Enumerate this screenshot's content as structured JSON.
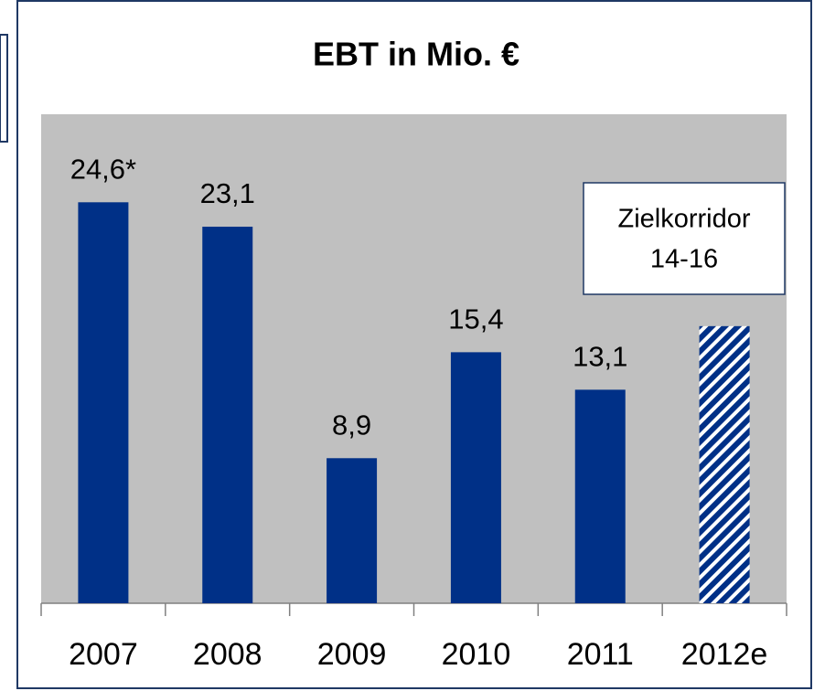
{
  "chart_data": {
    "type": "bar",
    "title": "EBT in Mio. €",
    "categories": [
      "2007",
      "2008",
      "2009",
      "2010",
      "2011",
      "2012e"
    ],
    "values": [
      24.6,
      23.1,
      8.9,
      15.4,
      13.1,
      17
    ],
    "value_labels": [
      "24,6*",
      "23,1",
      "8,9",
      "15,4",
      "13,1",
      null
    ],
    "hatched": [
      false,
      false,
      false,
      false,
      false,
      true
    ],
    "color": "#003087",
    "plot_background": "#c0c0c0",
    "ylim": [
      0,
      30
    ],
    "annotation": {
      "lines": [
        "Zielkorridor",
        "14-16"
      ]
    }
  }
}
